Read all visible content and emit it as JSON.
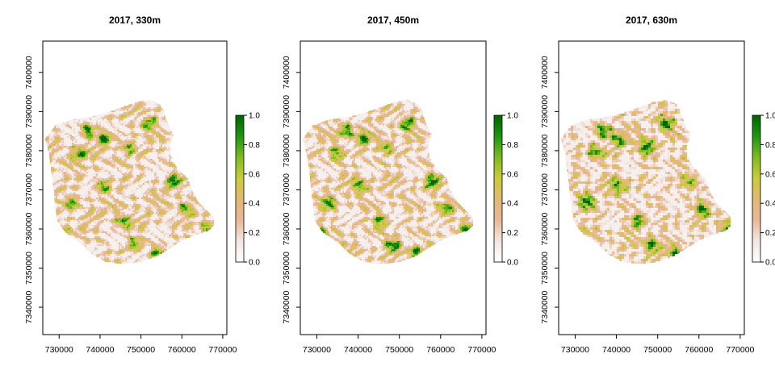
{
  "figure": {
    "background": "#ffffff",
    "colors": {
      "ramp": [
        "#ffffff",
        "#f2e6e1",
        "#e9b898",
        "#e3b874",
        "#c9cc3a",
        "#7fba22",
        "#1e9612",
        "#006400"
      ]
    }
  },
  "chart_data": [
    {
      "type": "heatmap",
      "title": "2017, 330m",
      "xlim": [
        726000,
        771000
      ],
      "ylim": [
        7333000,
        7408000
      ],
      "x_ticks": [
        730000,
        740000,
        750000,
        760000,
        770000
      ],
      "y_ticks": [
        7340000,
        7350000,
        7360000,
        7370000,
        7380000,
        7390000,
        7400000
      ],
      "x_tick_labels": [
        "730000",
        "740000",
        "750000",
        "760000",
        "770000"
      ],
      "y_tick_labels": [
        "7340000",
        "7350000",
        "7360000",
        "7370000",
        "7380000",
        "7390000",
        "7400000"
      ],
      "legend_range": [
        0,
        1
      ],
      "legend_ticks": [
        "0.0",
        "0.2",
        "0.4",
        "0.6",
        "0.8",
        "1.0"
      ],
      "legend_placement": "right",
      "resolution_m": 330
    },
    {
      "type": "heatmap",
      "title": "2017, 450m",
      "xlim": [
        726000,
        771000
      ],
      "ylim": [
        7333000,
        7408000
      ],
      "x_ticks": [
        730000,
        740000,
        750000,
        760000,
        770000
      ],
      "y_ticks": [
        7340000,
        7350000,
        7360000,
        7370000,
        7380000,
        7390000,
        7400000
      ],
      "x_tick_labels": [
        "730000",
        "740000",
        "750000",
        "760000",
        "770000"
      ],
      "y_tick_labels": [
        "7340000",
        "7350000",
        "7360000",
        "7370000",
        "7380000",
        "7390000",
        "7400000"
      ],
      "legend_range": [
        0,
        1
      ],
      "legend_ticks": [
        "0.0",
        "0.2",
        "0.4",
        "0.6",
        "0.8",
        "1.0"
      ],
      "legend_placement": "right",
      "resolution_m": 450
    },
    {
      "type": "heatmap",
      "title": "2017, 630m",
      "xlim": [
        726000,
        771000
      ],
      "ylim": [
        7333000,
        7408000
      ],
      "x_ticks": [
        730000,
        740000,
        750000,
        760000,
        770000
      ],
      "y_ticks": [
        7340000,
        7350000,
        7360000,
        7370000,
        7380000,
        7390000,
        7400000
      ],
      "x_tick_labels": [
        "730000",
        "740000",
        "750000",
        "760000",
        "770000"
      ],
      "y_tick_labels": [
        "7340000",
        "7350000",
        "7360000",
        "7370000",
        "7380000",
        "7390000",
        "7400000"
      ],
      "legend_range": [
        0,
        1
      ],
      "legend_ticks": [
        "0.0",
        "0.2",
        "0.4",
        "0.6",
        "0.8",
        "1.0"
      ],
      "legend_placement": "right",
      "resolution_m": 630
    }
  ],
  "region_outline": {
    "lon_lat_pairs": [
      [
        726500,
        7383000
      ],
      [
        729000,
        7386500
      ],
      [
        733000,
        7388000
      ],
      [
        737000,
        7388500
      ],
      [
        741000,
        7389500
      ],
      [
        745000,
        7391000
      ],
      [
        749000,
        7392500
      ],
      [
        752000,
        7393000
      ],
      [
        754500,
        7392000
      ],
      [
        755500,
        7390500
      ],
      [
        756000,
        7388500
      ],
      [
        756800,
        7386500
      ],
      [
        758000,
        7384000
      ],
      [
        757000,
        7381000
      ],
      [
        757500,
        7378000
      ],
      [
        759000,
        7375500
      ],
      [
        761500,
        7373000
      ],
      [
        762500,
        7370000
      ],
      [
        764000,
        7367000
      ],
      [
        766000,
        7365000
      ],
      [
        767800,
        7363000
      ],
      [
        768000,
        7361000
      ],
      [
        766500,
        7359500
      ],
      [
        763500,
        7358500
      ],
      [
        760000,
        7357000
      ],
      [
        757000,
        7355000
      ],
      [
        754000,
        7353000
      ],
      [
        750000,
        7351500
      ],
      [
        745500,
        7351000
      ],
      [
        741500,
        7351500
      ],
      [
        738000,
        7353500
      ],
      [
        735000,
        7356500
      ],
      [
        731500,
        7359000
      ],
      [
        729500,
        7362000
      ],
      [
        729000,
        7366000
      ],
      [
        728500,
        7371000
      ],
      [
        728000,
        7375000
      ],
      [
        727500,
        7379000
      ],
      [
        726500,
        7383000
      ]
    ],
    "hotspots": [
      [
        747000,
        7381000
      ],
      [
        737000,
        7385000
      ],
      [
        741000,
        7383000
      ],
      [
        733000,
        7367000
      ],
      [
        754000,
        7354000
      ],
      [
        766500,
        7360000
      ],
      [
        745500,
        7362000
      ],
      [
        735000,
        7379500
      ],
      [
        758000,
        7372000
      ],
      [
        748500,
        7356000
      ],
      [
        730500,
        7359000
      ],
      [
        752000,
        7387000
      ],
      [
        740500,
        7371000
      ],
      [
        761000,
        7365000
      ]
    ]
  }
}
